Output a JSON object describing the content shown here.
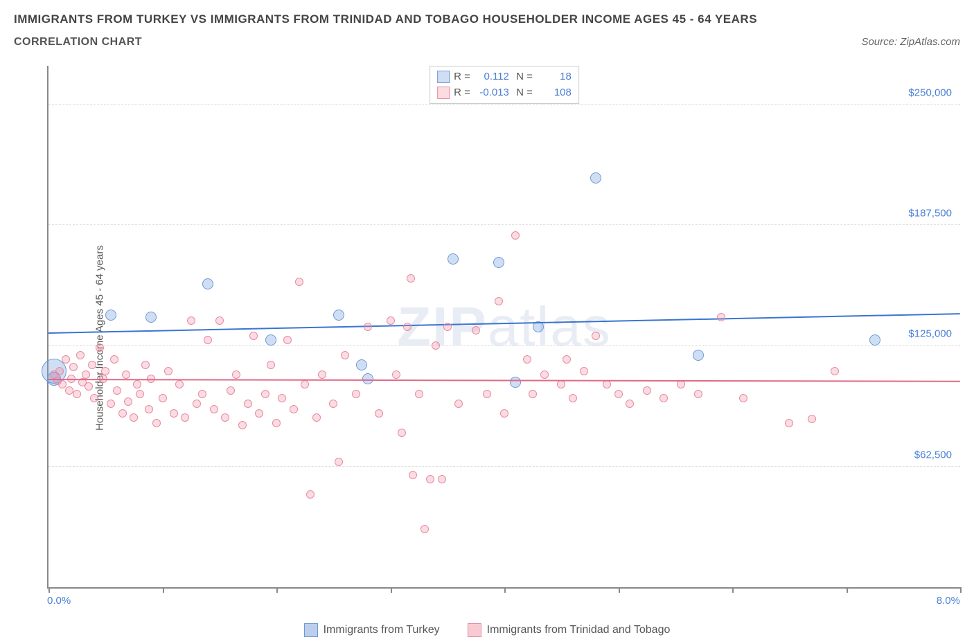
{
  "title": "IMMIGRANTS FROM TURKEY VS IMMIGRANTS FROM TRINIDAD AND TOBAGO HOUSEHOLDER INCOME AGES 45 - 64 YEARS",
  "subtitle": "CORRELATION CHART",
  "source": "Source: ZipAtlas.com",
  "watermark": "ZIPatlas",
  "chart": {
    "type": "scatter",
    "y_axis_label": "Householder Income Ages 45 - 64 years",
    "xlim": [
      0,
      8
    ],
    "ylim": [
      0,
      270000
    ],
    "x_ticks": [
      0,
      1,
      2,
      3,
      4,
      5,
      6,
      7,
      8
    ],
    "x_tick_labels": {
      "left": "0.0%",
      "right": "8.0%"
    },
    "y_gridlines": [
      62500,
      125000,
      187500,
      250000
    ],
    "y_tick_labels": [
      "$62,500",
      "$125,000",
      "$187,500",
      "$250,000"
    ],
    "background_color": "#ffffff",
    "grid_color": "#dddddd",
    "axis_color": "#888888",
    "label_color_blue": "#4a7fd8",
    "series": [
      {
        "name": "Immigrants from Turkey",
        "color_fill": "rgba(120,160,220,0.35)",
        "color_stroke": "#6a9ad8",
        "trend_color": "#3b74d1",
        "R": "0.112",
        "N": "18",
        "trend_y_start": 132000,
        "trend_y_end": 142000,
        "points": [
          {
            "x": 0.05,
            "y": 112000,
            "r": 18
          },
          {
            "x": 0.05,
            "y": 108000,
            "r": 10
          },
          {
            "x": 0.55,
            "y": 141000,
            "r": 8
          },
          {
            "x": 0.9,
            "y": 140000,
            "r": 8
          },
          {
            "x": 1.4,
            "y": 157000,
            "r": 8
          },
          {
            "x": 1.95,
            "y": 128000,
            "r": 8
          },
          {
            "x": 2.55,
            "y": 141000,
            "r": 8
          },
          {
            "x": 2.75,
            "y": 115000,
            "r": 8
          },
          {
            "x": 2.8,
            "y": 108000,
            "r": 8
          },
          {
            "x": 3.55,
            "y": 170000,
            "r": 8
          },
          {
            "x": 3.95,
            "y": 168000,
            "r": 8
          },
          {
            "x": 4.1,
            "y": 106000,
            "r": 8
          },
          {
            "x": 4.3,
            "y": 135000,
            "r": 8
          },
          {
            "x": 4.8,
            "y": 212000,
            "r": 8
          },
          {
            "x": 5.7,
            "y": 120000,
            "r": 8
          },
          {
            "x": 7.25,
            "y": 128000,
            "r": 8
          }
        ]
      },
      {
        "name": "Immigrants from Trinidad and Tobago",
        "color_fill": "rgba(240,140,160,0.3)",
        "color_stroke": "#e88aa0",
        "trend_color": "#e06a88",
        "R": "-0.013",
        "N": "108",
        "trend_y_start": 108000,
        "trend_y_end": 107000,
        "points": [
          {
            "x": 0.05,
            "y": 110000,
            "r": 6
          },
          {
            "x": 0.08,
            "y": 107000,
            "r": 6
          },
          {
            "x": 0.1,
            "y": 112000,
            "r": 6
          },
          {
            "x": 0.12,
            "y": 105000,
            "r": 6
          },
          {
            "x": 0.15,
            "y": 118000,
            "r": 6
          },
          {
            "x": 0.18,
            "y": 102000,
            "r": 6
          },
          {
            "x": 0.2,
            "y": 108000,
            "r": 6
          },
          {
            "x": 0.22,
            "y": 114000,
            "r": 6
          },
          {
            "x": 0.25,
            "y": 100000,
            "r": 6
          },
          {
            "x": 0.28,
            "y": 120000,
            "r": 6
          },
          {
            "x": 0.3,
            "y": 106000,
            "r": 6
          },
          {
            "x": 0.33,
            "y": 110000,
            "r": 6
          },
          {
            "x": 0.35,
            "y": 104000,
            "r": 6
          },
          {
            "x": 0.38,
            "y": 115000,
            "r": 6
          },
          {
            "x": 0.4,
            "y": 98000,
            "r": 6
          },
          {
            "x": 0.45,
            "y": 124000,
            "r": 6
          },
          {
            "x": 0.48,
            "y": 108000,
            "r": 6
          },
          {
            "x": 0.5,
            "y": 112000,
            "r": 6
          },
          {
            "x": 0.55,
            "y": 95000,
            "r": 6
          },
          {
            "x": 0.58,
            "y": 118000,
            "r": 6
          },
          {
            "x": 0.6,
            "y": 102000,
            "r": 6
          },
          {
            "x": 0.65,
            "y": 90000,
            "r": 6
          },
          {
            "x": 0.68,
            "y": 110000,
            "r": 6
          },
          {
            "x": 0.7,
            "y": 96000,
            "r": 6
          },
          {
            "x": 0.75,
            "y": 88000,
            "r": 6
          },
          {
            "x": 0.78,
            "y": 105000,
            "r": 6
          },
          {
            "x": 0.8,
            "y": 100000,
            "r": 6
          },
          {
            "x": 0.85,
            "y": 115000,
            "r": 6
          },
          {
            "x": 0.88,
            "y": 92000,
            "r": 6
          },
          {
            "x": 0.9,
            "y": 108000,
            "r": 6
          },
          {
            "x": 0.95,
            "y": 85000,
            "r": 6
          },
          {
            "x": 1.0,
            "y": 98000,
            "r": 6
          },
          {
            "x": 1.05,
            "y": 112000,
            "r": 6
          },
          {
            "x": 1.1,
            "y": 90000,
            "r": 6
          },
          {
            "x": 1.15,
            "y": 105000,
            "r": 6
          },
          {
            "x": 1.2,
            "y": 88000,
            "r": 6
          },
          {
            "x": 1.25,
            "y": 138000,
            "r": 6
          },
          {
            "x": 1.3,
            "y": 95000,
            "r": 6
          },
          {
            "x": 1.35,
            "y": 100000,
            "r": 6
          },
          {
            "x": 1.4,
            "y": 128000,
            "r": 6
          },
          {
            "x": 1.45,
            "y": 92000,
            "r": 6
          },
          {
            "x": 1.5,
            "y": 138000,
            "r": 6
          },
          {
            "x": 1.55,
            "y": 88000,
            "r": 6
          },
          {
            "x": 1.6,
            "y": 102000,
            "r": 6
          },
          {
            "x": 1.65,
            "y": 110000,
            "r": 6
          },
          {
            "x": 1.7,
            "y": 84000,
            "r": 6
          },
          {
            "x": 1.75,
            "y": 95000,
            "r": 6
          },
          {
            "x": 1.8,
            "y": 130000,
            "r": 6
          },
          {
            "x": 1.85,
            "y": 90000,
            "r": 6
          },
          {
            "x": 1.9,
            "y": 100000,
            "r": 6
          },
          {
            "x": 1.95,
            "y": 115000,
            "r": 6
          },
          {
            "x": 2.0,
            "y": 85000,
            "r": 6
          },
          {
            "x": 2.05,
            "y": 98000,
            "r": 6
          },
          {
            "x": 2.1,
            "y": 128000,
            "r": 6
          },
          {
            "x": 2.15,
            "y": 92000,
            "r": 6
          },
          {
            "x": 2.2,
            "y": 158000,
            "r": 6
          },
          {
            "x": 2.25,
            "y": 105000,
            "r": 6
          },
          {
            "x": 2.3,
            "y": 48000,
            "r": 6
          },
          {
            "x": 2.35,
            "y": 88000,
            "r": 6
          },
          {
            "x": 2.4,
            "y": 110000,
            "r": 6
          },
          {
            "x": 2.5,
            "y": 95000,
            "r": 6
          },
          {
            "x": 2.55,
            "y": 65000,
            "r": 6
          },
          {
            "x": 2.6,
            "y": 120000,
            "r": 6
          },
          {
            "x": 2.7,
            "y": 100000,
            "r": 6
          },
          {
            "x": 2.8,
            "y": 135000,
            "r": 6
          },
          {
            "x": 2.9,
            "y": 90000,
            "r": 6
          },
          {
            "x": 3.0,
            "y": 138000,
            "r": 6
          },
          {
            "x": 3.05,
            "y": 110000,
            "r": 6
          },
          {
            "x": 3.1,
            "y": 80000,
            "r": 6
          },
          {
            "x": 3.15,
            "y": 135000,
            "r": 6
          },
          {
            "x": 3.18,
            "y": 160000,
            "r": 6
          },
          {
            "x": 3.2,
            "y": 58000,
            "r": 6
          },
          {
            "x": 3.25,
            "y": 100000,
            "r": 6
          },
          {
            "x": 3.3,
            "y": 30000,
            "r": 6
          },
          {
            "x": 3.35,
            "y": 56000,
            "r": 6
          },
          {
            "x": 3.4,
            "y": 125000,
            "r": 6
          },
          {
            "x": 3.45,
            "y": 56000,
            "r": 6
          },
          {
            "x": 3.5,
            "y": 135000,
            "r": 6
          },
          {
            "x": 3.6,
            "y": 95000,
            "r": 6
          },
          {
            "x": 3.75,
            "y": 133000,
            "r": 6
          },
          {
            "x": 3.85,
            "y": 100000,
            "r": 6
          },
          {
            "x": 3.95,
            "y": 148000,
            "r": 6
          },
          {
            "x": 4.0,
            "y": 90000,
            "r": 6
          },
          {
            "x": 4.1,
            "y": 182000,
            "r": 6
          },
          {
            "x": 4.2,
            "y": 118000,
            "r": 6
          },
          {
            "x": 4.25,
            "y": 100000,
            "r": 6
          },
          {
            "x": 4.35,
            "y": 110000,
            "r": 6
          },
          {
            "x": 4.5,
            "y": 105000,
            "r": 6
          },
          {
            "x": 4.55,
            "y": 118000,
            "r": 6
          },
          {
            "x": 4.6,
            "y": 98000,
            "r": 6
          },
          {
            "x": 4.7,
            "y": 112000,
            "r": 6
          },
          {
            "x": 4.8,
            "y": 130000,
            "r": 6
          },
          {
            "x": 4.9,
            "y": 105000,
            "r": 6
          },
          {
            "x": 5.0,
            "y": 100000,
            "r": 6
          },
          {
            "x": 5.1,
            "y": 95000,
            "r": 6
          },
          {
            "x": 5.25,
            "y": 102000,
            "r": 6
          },
          {
            "x": 5.4,
            "y": 98000,
            "r": 6
          },
          {
            "x": 5.55,
            "y": 105000,
            "r": 6
          },
          {
            "x": 5.7,
            "y": 100000,
            "r": 6
          },
          {
            "x": 5.9,
            "y": 140000,
            "r": 6
          },
          {
            "x": 6.1,
            "y": 98000,
            "r": 6
          },
          {
            "x": 6.5,
            "y": 85000,
            "r": 6
          },
          {
            "x": 6.7,
            "y": 87000,
            "r": 6
          },
          {
            "x": 6.9,
            "y": 112000,
            "r": 6
          }
        ]
      }
    ],
    "legend": [
      {
        "label": "Immigrants from Turkey",
        "fill": "rgba(120,160,220,0.5)",
        "stroke": "#6a9ad8"
      },
      {
        "label": "Immigrants from Trinidad and Tobago",
        "fill": "rgba(240,140,160,0.45)",
        "stroke": "#e88aa0"
      }
    ]
  }
}
